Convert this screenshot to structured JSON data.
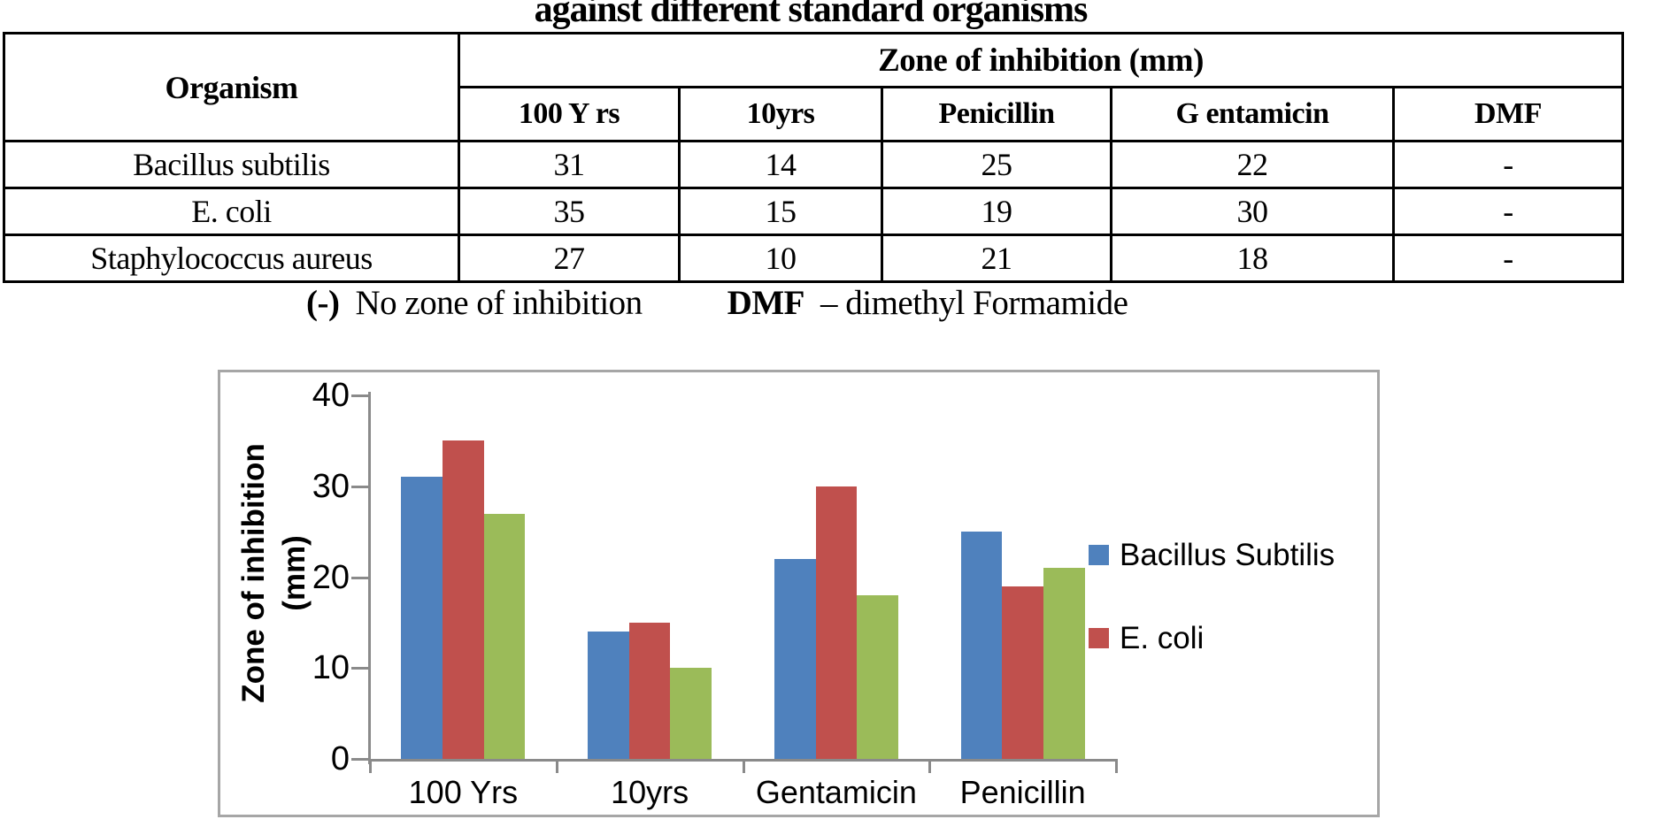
{
  "title": "against different standard organisms",
  "table": {
    "organism_header": "Organism",
    "group_header": "Zone of inhibition (mm)",
    "sub_headers": [
      "100 Y rs",
      "10yrs",
      "Penicillin",
      "G entamicin",
      "DMF"
    ],
    "rows": [
      {
        "organism": "Bacillus subtilis",
        "values": [
          "31",
          "14",
          "25",
          "22",
          "-"
        ]
      },
      {
        "organism": "E. coli",
        "values": [
          "35",
          "15",
          "19",
          "30",
          "-"
        ]
      },
      {
        "organism": "Staphylococcus aureus",
        "values": [
          "27",
          "10",
          "21",
          "18",
          "-"
        ]
      }
    ]
  },
  "footnote": {
    "symbol1": "(-)",
    "text1": "No zone of inhibition",
    "symbol2": "DMF",
    "text2": "– dimethyl Formamide"
  },
  "chart_data": {
    "type": "bar",
    "categories": [
      "100 Yrs",
      "10yrs",
      "Gentamicin",
      "Penicillin"
    ],
    "series": [
      {
        "name": "Bacillus Subtilis",
        "color": "#4F81BD",
        "values": [
          31,
          14,
          22,
          25
        ]
      },
      {
        "name": "E. coli",
        "color": "#C0504D",
        "values": [
          35,
          15,
          30,
          19
        ]
      },
      {
        "name": "Staphylococcus aureus",
        "color": "#9BBB59",
        "values": [
          27,
          10,
          18,
          21
        ]
      }
    ],
    "legend_items": [
      "Bacillus Subtilis",
      "E. coli"
    ],
    "legend_position": "right",
    "ylabel_line1": "Zone of inhibition",
    "ylabel_line2": "(mm)",
    "ylim": [
      0,
      40
    ],
    "yticks": [
      0,
      10,
      20,
      30,
      40
    ],
    "grid": false,
    "axis_color": "#8a8a8a"
  }
}
